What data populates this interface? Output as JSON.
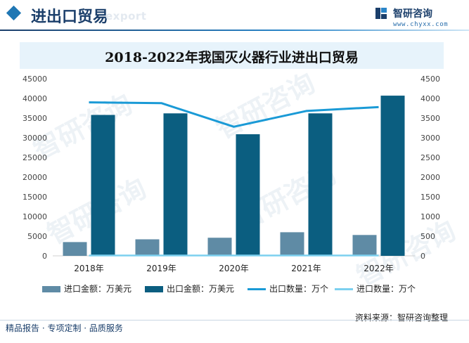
{
  "header": {
    "title": "进出口贸易",
    "ghost_text": "export"
  },
  "brand": {
    "name": "智研咨询",
    "url": "www.chyxx.com",
    "logo_icon": "chyxx-logo-icon"
  },
  "watermark": {
    "text": "智研咨询"
  },
  "colors": {
    "import_amount": "#5f8ba5",
    "export_amount": "#0b5e80",
    "export_qty": "#1a9ad6",
    "import_qty": "#7cd0ef",
    "header_accent": "#1b3f6b"
  },
  "chart_data": {
    "type": "bar",
    "title": "2018-2022年我国灭火器行业进出口贸易",
    "categories": [
      "2018年",
      "2019年",
      "2020年",
      "2021年",
      "2022年"
    ],
    "series": [
      {
        "name": "进口金额：万美元",
        "type": "bar",
        "axis": "left",
        "values": [
          3500,
          4200,
          4600,
          6000,
          5300
        ]
      },
      {
        "name": "出口金额：万美元",
        "type": "bar",
        "axis": "left",
        "values": [
          35800,
          36200,
          30900,
          36200,
          40700
        ]
      },
      {
        "name": "出口数量：万个",
        "type": "line",
        "axis": "right",
        "values": [
          3900,
          3880,
          3280,
          3680,
          3780
        ]
      },
      {
        "name": "进口数量：万个",
        "type": "line",
        "axis": "right",
        "values": [
          8,
          8,
          8,
          8,
          8
        ]
      }
    ],
    "y_left": {
      "min": 0,
      "max": 45000,
      "ticks": [
        0,
        5000,
        10000,
        15000,
        20000,
        25000,
        30000,
        35000,
        40000,
        45000
      ]
    },
    "y_right": {
      "min": 0,
      "max": 4500,
      "ticks": [
        0,
        500,
        1000,
        1500,
        2000,
        2500,
        3000,
        3500,
        4000,
        4500
      ]
    },
    "grid": false,
    "legend_position": "bottom"
  },
  "source": "资料来源：智研咨询整理",
  "footer": "精品报告 · 专项定制 · 品质服务"
}
